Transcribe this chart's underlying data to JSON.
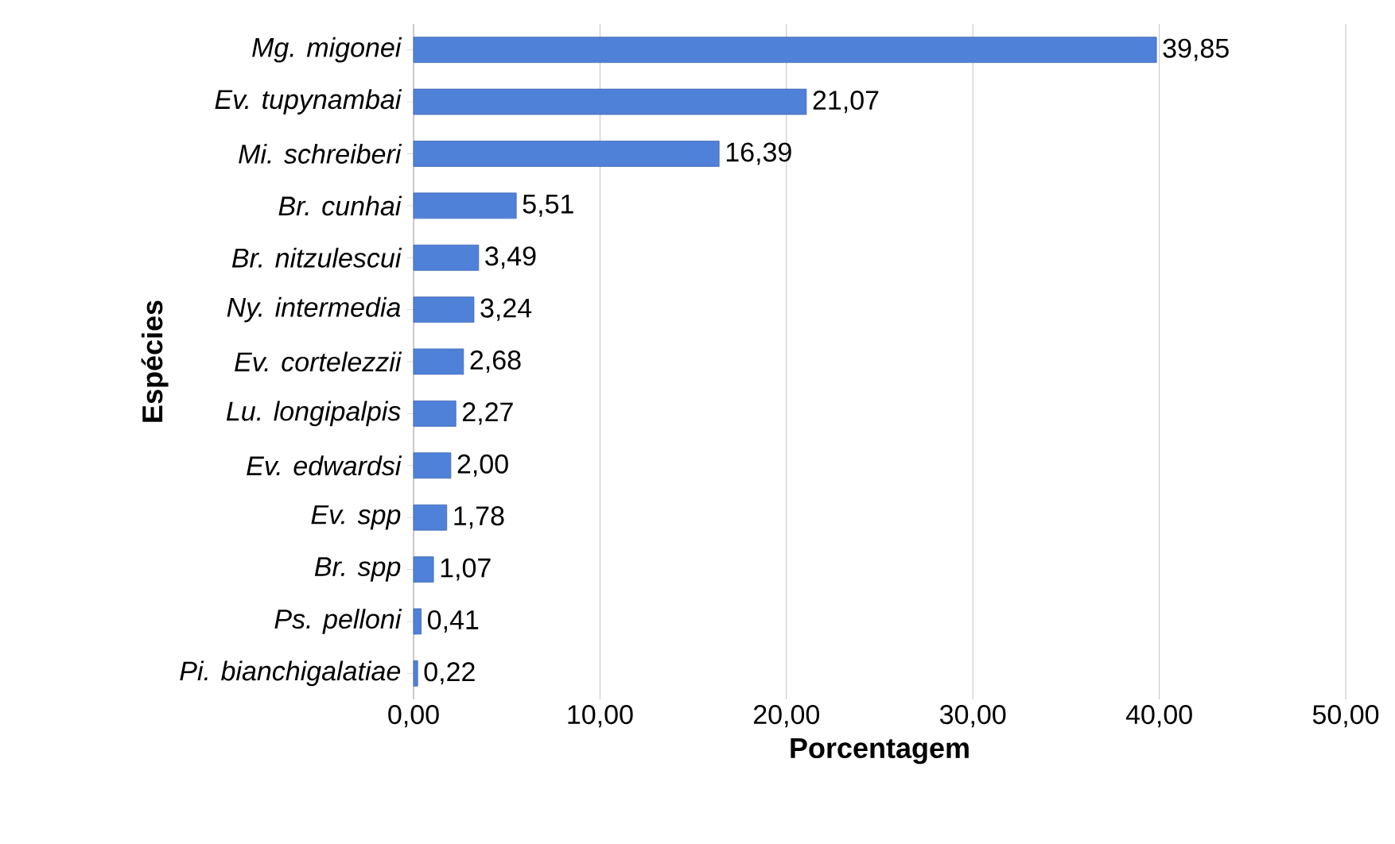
{
  "chart_data": {
    "type": "bar",
    "orientation": "horizontal",
    "xlabel": "Porcentagem",
    "ylabel": "Espécies",
    "categories": [
      "Mg. migonei",
      "Ev. tupynambai",
      "Mi. schreiberi",
      "Br. cunhai",
      "Br. nitzulescui",
      "Ny. intermedia",
      "Ev. cortelezzii",
      "Lu. longipalpis",
      "Ev. edwardsi",
      "Ev. spp",
      "Br. spp",
      "Ps. pelloni",
      "Pi. bianchigalatiae"
    ],
    "values": [
      39.85,
      21.07,
      16.39,
      5.51,
      3.49,
      3.24,
      2.68,
      2.27,
      2.0,
      1.78,
      1.07,
      0.41,
      0.22
    ],
    "value_labels": [
      "39,85",
      "21,07",
      "16,39",
      "5,51",
      "3,49",
      "3,24",
      "2,68",
      "2,27",
      "2,00",
      "1,78",
      "1,07",
      "0,41",
      "0,22"
    ],
    "color": "#4f81d9",
    "xlim": [
      0,
      50
    ],
    "xticks": [
      {
        "value": 0,
        "label": "0,00"
      },
      {
        "value": 10,
        "label": "10,00"
      },
      {
        "value": 20,
        "label": "20,00"
      },
      {
        "value": 30,
        "label": "30,00"
      },
      {
        "value": 40,
        "label": "40,00"
      },
      {
        "value": 50,
        "label": "50,00"
      }
    ],
    "grid": "x"
  }
}
